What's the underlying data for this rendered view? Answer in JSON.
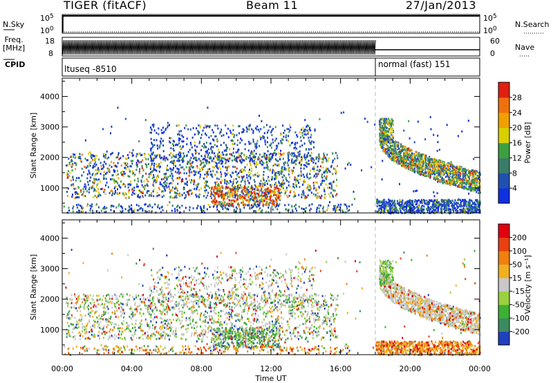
{
  "header": {
    "radar": "TIGER (fitACF)",
    "beam": "Beam 11",
    "date": "27/Jan/2013"
  },
  "strip_labels": {
    "nsky": "N.Sky",
    "freq_line1": "Freq.",
    "freq_line2": "[MHz]",
    "cpid": "CPID",
    "nsearch": "N.Search",
    "nave": "Nave",
    "nsky_ticks": [
      "10^5",
      "10^0"
    ],
    "nsearch_ticks": [
      "10^5",
      "10^0"
    ],
    "freq_ticks": [
      "18",
      "8"
    ],
    "nave_ticks": [
      "60",
      "0"
    ],
    "cpid_segments": [
      {
        "label": "ltuseq -8510",
        "start_hour": 0,
        "end_hour": 18.0
      },
      {
        "label": "normal (fast) 151",
        "start_hour": 18.0,
        "end_hour": 24
      }
    ]
  },
  "chart_data": [
    {
      "type": "heatmap",
      "panel": "power",
      "xlabel": "",
      "ylabel": "Slant Range [km]",
      "xlim": [
        0,
        24
      ],
      "ylim": [
        180,
        4600
      ],
      "yticks": [
        1000,
        2000,
        3000,
        4000
      ],
      "colorbar": {
        "label": "Power [dB]",
        "ticks": [
          "4",
          "8",
          "12",
          "16",
          "20",
          "24",
          "28"
        ],
        "colors": [
          "#1030e0",
          "#2050b0",
          "#3a7c6a",
          "#3ca040",
          "#d8d000",
          "#f0a000",
          "#f07010",
          "#e02010"
        ]
      }
    },
    {
      "type": "heatmap",
      "panel": "velocity",
      "xlabel": "Time UT",
      "ylabel": "Slant Range [km]",
      "xlim": [
        0,
        24
      ],
      "ylim": [
        180,
        4600
      ],
      "xticks": [
        "00:00",
        "04:00",
        "08:00",
        "12:00",
        "16:00",
        "20:00",
        "00:00"
      ],
      "yticks": [
        1000,
        2000,
        3000,
        4000
      ],
      "colorbar": {
        "label": "Velocity [m s⁻¹]",
        "ticks": [
          "200",
          "100",
          "50",
          "15",
          "-15",
          "-50",
          "-100",
          "-200"
        ],
        "colors": [
          "#2040c0",
          "#3a8a60",
          "#3cb030",
          "#9ad040",
          "#c8c8c8",
          "#f0b020",
          "#f08010",
          "#e84010",
          "#e00010"
        ]
      }
    }
  ]
}
